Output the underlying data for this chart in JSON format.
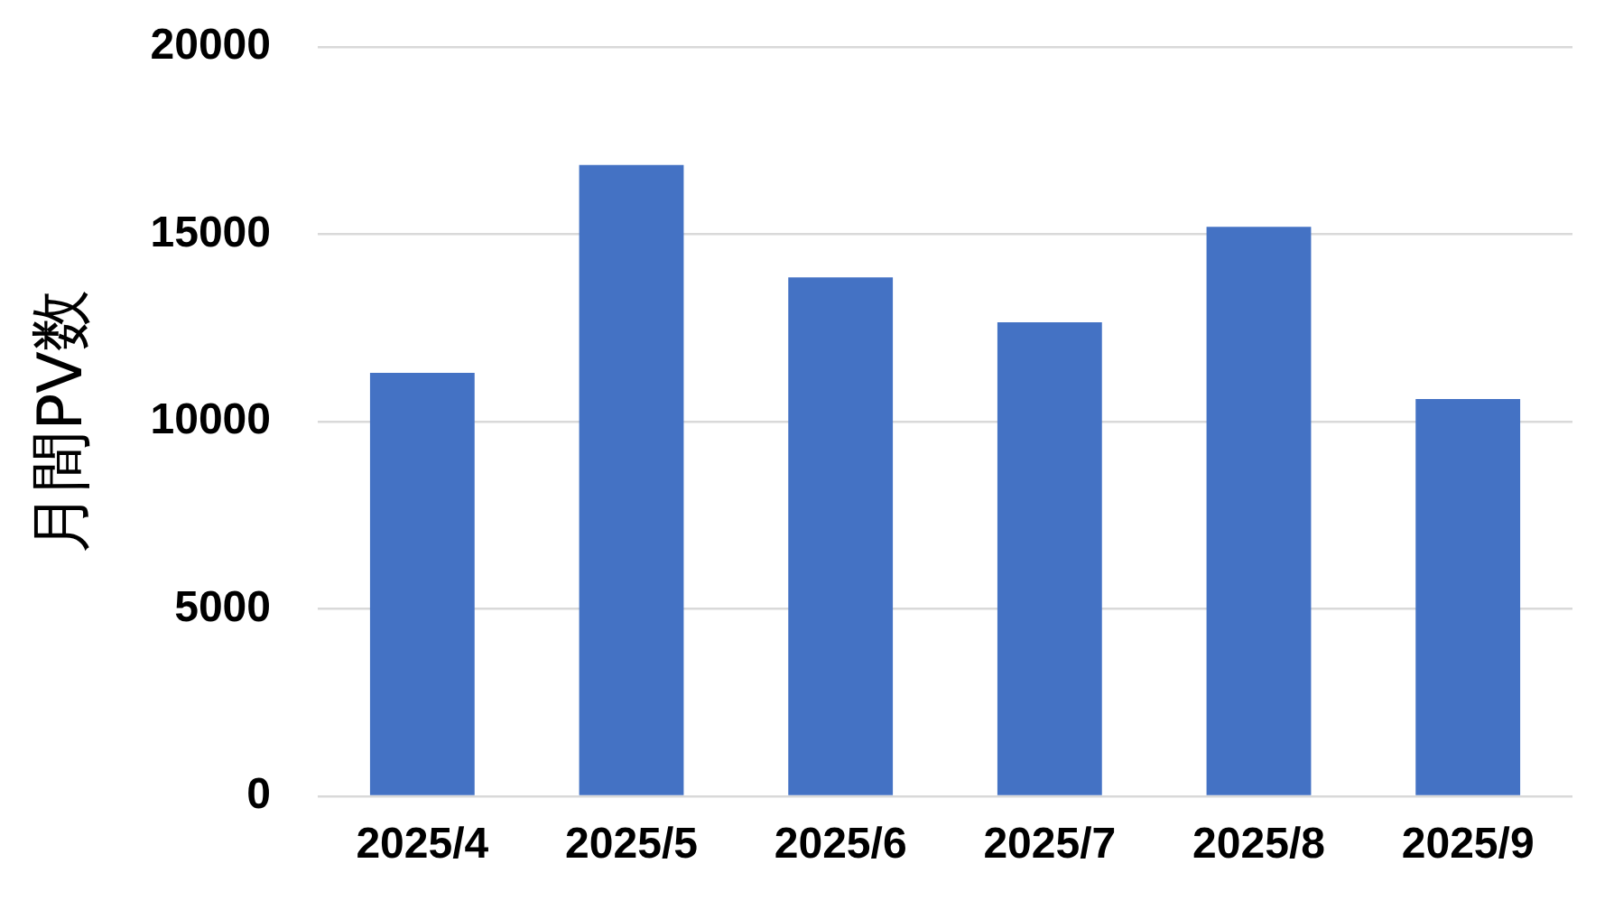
{
  "chart_data": {
    "type": "bar",
    "ylabel": "月間PV数",
    "categories": [
      "2025/4",
      "2025/5",
      "2025/6",
      "2025/7",
      "2025/8",
      "2025/9"
    ],
    "values": [
      11300,
      16850,
      13850,
      12650,
      15200,
      10600
    ],
    "color": "#4472c4",
    "ylim": [
      0,
      20000
    ],
    "yticks": [
      0,
      5000,
      10000,
      15000,
      20000
    ],
    "grid": "y"
  }
}
